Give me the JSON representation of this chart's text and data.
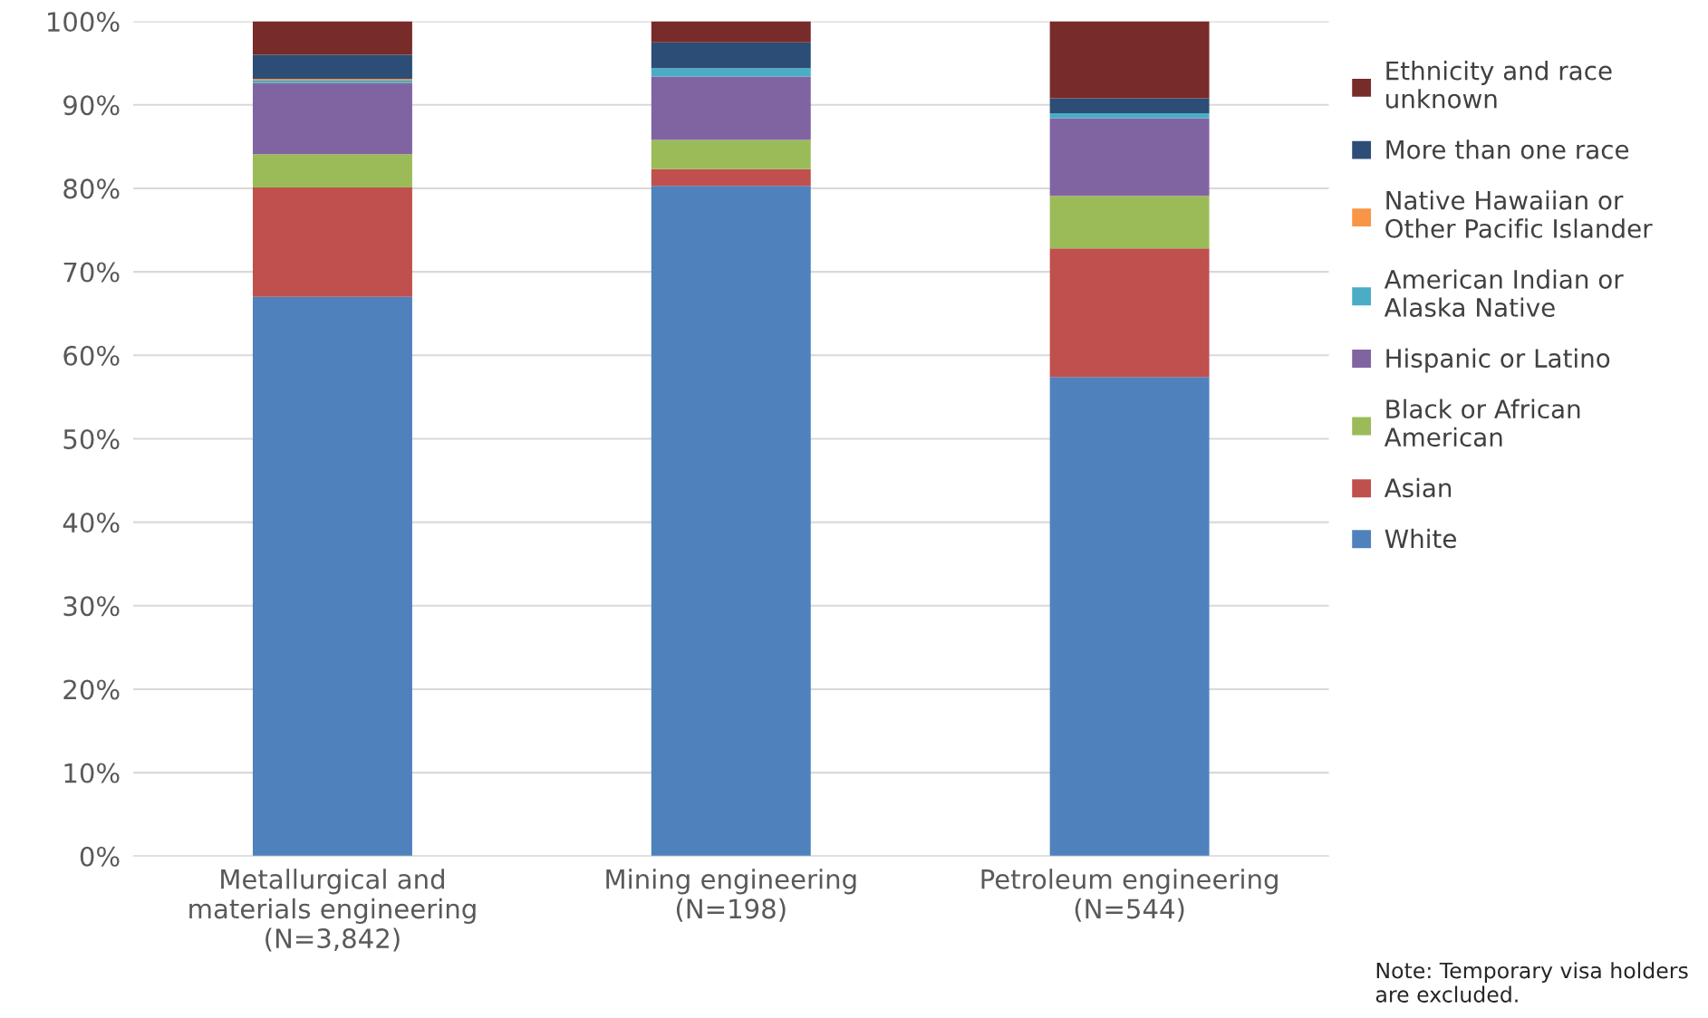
{
  "chart_data": {
    "type": "bar",
    "stacked": true,
    "categories": [
      "Metallurgical and\nmaterials engineering\n(N=3,842)",
      "Mining engineering\n(N=198)",
      "Petroleum engineering\n(N=544)"
    ],
    "series": [
      {
        "name": "White",
        "color": "#4f81bd",
        "values": [
          67.0,
          80.3,
          57.4
        ]
      },
      {
        "name": "Asian",
        "color": "#c0504d",
        "values": [
          13.1,
          2.0,
          15.4
        ]
      },
      {
        "name": "Black or African\nAmerican",
        "color": "#9bbb59",
        "values": [
          4.0,
          3.5,
          6.3
        ]
      },
      {
        "name": "Hispanic or Latino",
        "color": "#8064a2",
        "values": [
          8.5,
          7.6,
          9.3
        ]
      },
      {
        "name": "American Indian or\nAlaska Native",
        "color": "#4bacc6",
        "values": [
          0.3,
          1.0,
          0.6
        ]
      },
      {
        "name": "Native Hawaiian or\nOther Pacific Islander",
        "color": "#f79646",
        "values": [
          0.2,
          0,
          0
        ]
      },
      {
        "name": "More than one race",
        "color": "#2c4d75",
        "values": [
          2.9,
          3.1,
          1.8
        ]
      },
      {
        "name": "Ethnicity and race\nunknown",
        "color": "#772c2a",
        "values": [
          4.0,
          2.5,
          9.2
        ]
      }
    ],
    "ylim": [
      0,
      100
    ],
    "yticks": [
      {
        "value": 0,
        "label": "0%"
      },
      {
        "value": 10,
        "label": "10%"
      },
      {
        "value": 20,
        "label": "20%"
      },
      {
        "value": 30,
        "label": "30%"
      },
      {
        "value": 40,
        "label": "40%"
      },
      {
        "value": 50,
        "label": "50%"
      },
      {
        "value": 60,
        "label": "60%"
      },
      {
        "value": 70,
        "label": "70%"
      },
      {
        "value": 80,
        "label": "80%"
      },
      {
        "value": 90,
        "label": "90%"
      },
      {
        "value": 100,
        "label": "100%"
      }
    ],
    "grid": "y",
    "legend": "right",
    "annotations": [
      "Note: Temporary visa holders are excluded."
    ]
  }
}
